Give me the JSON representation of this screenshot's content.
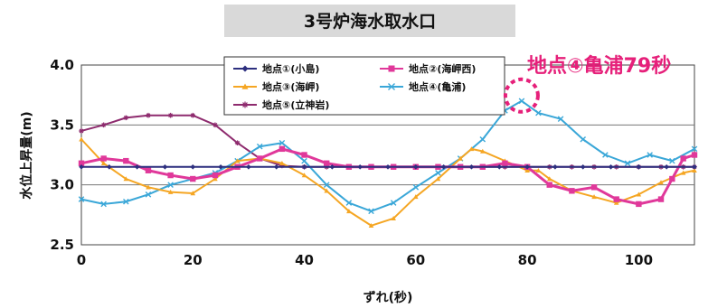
{
  "chart_data": {
    "type": "line",
    "title": "3号炉海水取水口",
    "xlabel": "ずれ(秒)",
    "ylabel": "水位上昇量(m)",
    "xlim": [
      0,
      110
    ],
    "ylim": [
      2.5,
      4.0
    ],
    "xticks": [
      0,
      20,
      40,
      60,
      80,
      100
    ],
    "xtick_labels": [
      "0",
      "20",
      "40",
      "60",
      "80",
      "100"
    ],
    "yticks": [
      2.5,
      3.0,
      3.5,
      4.0
    ],
    "ytick_labels": [
      "2.5",
      "3.0",
      "3.5",
      "4.0"
    ],
    "grid": "horizontal",
    "legend_position": "top-left inside plot",
    "annotation": {
      "text": "地点④亀浦79秒",
      "color": "#e6207a",
      "x": 79,
      "y": 3.7
    },
    "series": [
      {
        "name": "地点①(小島)",
        "color": "#2d2f7f",
        "marker": "diamond",
        "x": [
          0,
          5,
          10,
          15,
          20,
          25,
          30,
          35,
          40,
          45,
          50,
          55,
          60,
          65,
          70,
          75,
          80,
          85,
          90,
          95,
          100,
          105,
          110
        ],
        "y": [
          3.15,
          3.15,
          3.15,
          3.15,
          3.15,
          3.15,
          3.15,
          3.15,
          3.15,
          3.15,
          3.15,
          3.15,
          3.15,
          3.15,
          3.15,
          3.15,
          3.15,
          3.15,
          3.15,
          3.15,
          3.15,
          3.15,
          3.15
        ]
      },
      {
        "name": "地点②(海岬西)",
        "color": "#e0389a",
        "marker": "square",
        "x": [
          0,
          4,
          8,
          12,
          16,
          20,
          24,
          28,
          32,
          36,
          40,
          44,
          48,
          52,
          56,
          60,
          64,
          68,
          72,
          76,
          80,
          84,
          88,
          92,
          96,
          100,
          104,
          106,
          108,
          110
        ],
        "y": [
          3.18,
          3.22,
          3.2,
          3.12,
          3.08,
          3.05,
          3.08,
          3.15,
          3.22,
          3.3,
          3.25,
          3.18,
          3.15,
          3.15,
          3.15,
          3.15,
          3.15,
          3.15,
          3.15,
          3.18,
          3.15,
          3.0,
          2.95,
          2.98,
          2.88,
          2.84,
          2.88,
          3.05,
          3.22,
          3.25
        ]
      },
      {
        "name": "地点③(海岬)",
        "color": "#f5a623",
        "marker": "triangle",
        "x": [
          0,
          4,
          8,
          12,
          16,
          20,
          24,
          28,
          32,
          36,
          40,
          44,
          48,
          52,
          56,
          60,
          64,
          68,
          70,
          72,
          76,
          80,
          82,
          84,
          88,
          92,
          96,
          100,
          104,
          108,
          110
        ],
        "y": [
          3.38,
          3.18,
          3.05,
          2.98,
          2.94,
          2.93,
          3.05,
          3.2,
          3.22,
          3.18,
          3.08,
          2.95,
          2.78,
          2.66,
          2.72,
          2.9,
          3.05,
          3.22,
          3.3,
          3.28,
          3.2,
          3.12,
          3.12,
          3.05,
          2.95,
          2.9,
          2.85,
          2.92,
          3.02,
          3.1,
          3.12
        ]
      },
      {
        "name": "地点④(亀浦)",
        "color": "#3aa7d8",
        "marker": "x",
        "x": [
          0,
          4,
          8,
          12,
          16,
          20,
          24,
          28,
          32,
          36,
          40,
          44,
          48,
          52,
          56,
          60,
          64,
          68,
          72,
          76,
          79,
          82,
          86,
          90,
          94,
          98,
          102,
          106,
          110
        ],
        "y": [
          2.88,
          2.84,
          2.86,
          2.92,
          3.0,
          3.05,
          3.1,
          3.2,
          3.32,
          3.35,
          3.2,
          3.0,
          2.85,
          2.78,
          2.85,
          2.98,
          3.1,
          3.22,
          3.38,
          3.62,
          3.7,
          3.6,
          3.55,
          3.38,
          3.25,
          3.18,
          3.25,
          3.2,
          3.3
        ]
      },
      {
        "name": "地点⑤(立神岩)",
        "color": "#8e2b6e",
        "marker": "star",
        "x": [
          0,
          4,
          8,
          12,
          16,
          20,
          24,
          28,
          32,
          36,
          40,
          44,
          48,
          52,
          56,
          60,
          64,
          68,
          72,
          76,
          80,
          84,
          88,
          92,
          96,
          100,
          104,
          108,
          110
        ],
        "y": [
          3.45,
          3.5,
          3.56,
          3.58,
          3.58,
          3.58,
          3.5,
          3.35,
          3.22,
          3.16,
          3.15,
          3.15,
          3.15,
          3.15,
          3.15,
          3.15,
          3.15,
          3.15,
          3.15,
          3.15,
          3.15,
          3.15,
          3.15,
          3.15,
          3.15,
          3.15,
          3.15,
          3.15,
          3.15
        ]
      }
    ]
  }
}
